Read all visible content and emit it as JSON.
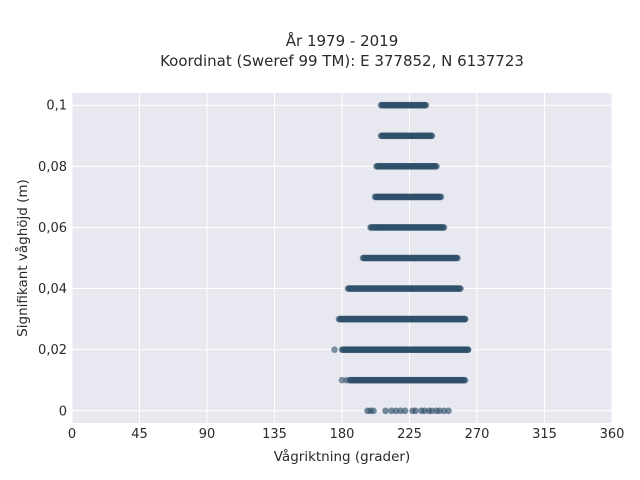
{
  "chart_data": {
    "type": "scatter",
    "title_line1": "År 1979 - 2019",
    "title_line2": "Koordinat (Sweref 99 TM): E 377852, N 6137723",
    "xlabel": "Vågriktning (grader)",
    "ylabel": "Signifikant våghöjd (m)",
    "xlim": [
      0,
      360
    ],
    "ylim": [
      -0.004,
      0.104
    ],
    "xticks": [
      0,
      45,
      90,
      135,
      180,
      225,
      270,
      315,
      360
    ],
    "xtick_labels": [
      "0",
      "45",
      "90",
      "135",
      "180",
      "225",
      "270",
      "315",
      "360"
    ],
    "yticks": [
      0,
      0.02,
      0.04,
      0.06,
      0.08,
      0.1
    ],
    "ytick_labels": [
      "0",
      "0,02",
      "0,04",
      "0,06",
      "0,08",
      "0,1"
    ],
    "grid": true,
    "background_color": "#e8e8f1",
    "marker_color": "#2f5069",
    "series": [
      {
        "rows": [
          {
            "y": 0.1,
            "x_min": 206,
            "x_max": 236
          },
          {
            "y": 0.09,
            "x_min": 206,
            "x_max": 240
          },
          {
            "y": 0.08,
            "x_min": 203,
            "x_max": 243
          },
          {
            "y": 0.07,
            "x_min": 202,
            "x_max": 246
          },
          {
            "y": 0.06,
            "x_min": 199,
            "x_max": 248
          },
          {
            "y": 0.05,
            "x_min": 194,
            "x_max": 257
          },
          {
            "y": 0.04,
            "x_min": 184,
            "x_max": 259
          },
          {
            "y": 0.03,
            "x_min": 178,
            "x_max": 262
          },
          {
            "y": 0.02,
            "x_min": 180,
            "x_max": 264
          },
          {
            "y": 0.01,
            "x_min": 185,
            "x_max": 262
          }
        ],
        "outliers": [
          {
            "x": 175,
            "y": 0.02
          },
          {
            "x": 180,
            "y": 0.01
          },
          {
            "x": 183,
            "y": 0.01
          },
          {
            "x": 262,
            "y": 0.03
          },
          {
            "x": 264,
            "y": 0.02
          }
        ],
        "zero_points": [
          197,
          199,
          201,
          209,
          213,
          216,
          219,
          222,
          227,
          229,
          233,
          235,
          238,
          240,
          243,
          245,
          248,
          251
        ]
      }
    ]
  }
}
